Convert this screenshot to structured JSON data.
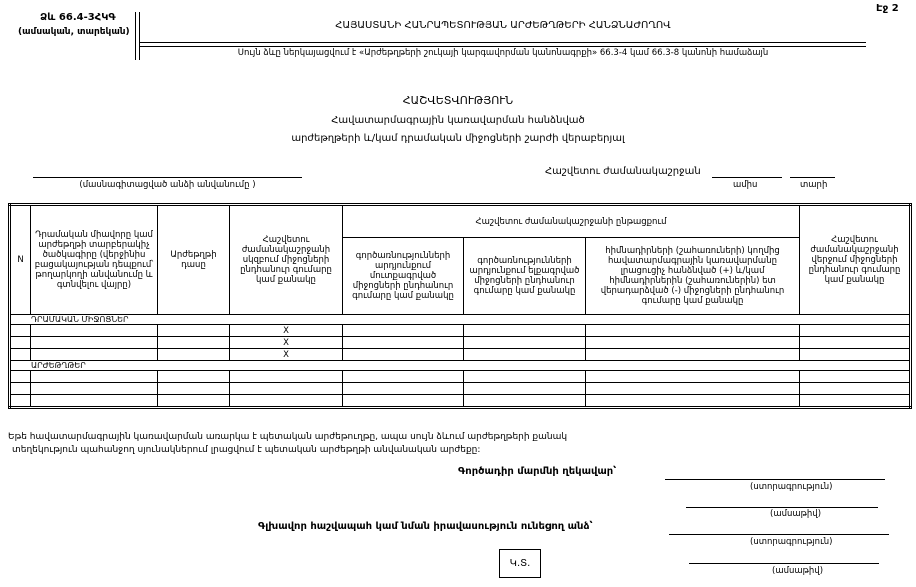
{
  "header": {
    "form_code": "Ձև 66.4-3ՀԿԳ",
    "form_period": "(ամսական, տարեկան)",
    "authority": "ՀԱՅԱՍՏԱՆԻ ՀԱՆՐԱՊԵՏՈՒԹՅԱՆ ԱՐԺԵԹՂԹԵՐԻ ՀԱՆՁՆԱԺՈՂՈՎ",
    "legal_basis": "Սույն ձևը ներկայացվում է «Արժեթղթերի շուկայի կարգավորման կանոնագրքի» 66.3-4 կամ 66.3-8 կանոնի համաձայն",
    "page_label": "Էջ 2"
  },
  "title": {
    "main": "ՀԱՇՎԵՏՎՈՒԹՅՈՒՆ",
    "line1": "Հավատարմագրային կառավարման հանձնված",
    "line2": "արժեթղթերի և/կամ դրամական միջոցների շարժի վերաբերյալ"
  },
  "entity": {
    "caption": "(մասնագիտացված անձի անվանումը )"
  },
  "period": {
    "label": "Հաշվետու ժամանակաշրջան",
    "month_caption": "ամիս",
    "year_caption": "տարի"
  },
  "table": {
    "headers": {
      "n": "N",
      "code": "Դրամական միավորը կամ արժեթղթի տարբերակիչ ծածկագիրը (վերջինիս բացակայության դեպքում՝ թողարկողի անվանումը և գտնվելու վայրը)",
      "class": "Արժեթղթի դասը",
      "start": "Հաշվետու ժամանակաշրջանի սկզբում միջոցների ընդհանուր գումարը կամ քանակը",
      "during": "Հաշվետու ժամանակաշրջանի ընթացքում",
      "in": "գործառնությունների արդյունքում մուտքագրված միջոցների ընդհանուր գումարը կամ քանակը",
      "out": "գործառնությունների արդյունքում ելքագրված միջոցների ընդհանուր գումարը կամ քանակը",
      "founders": "հիմնադիրների (շահառուների) կողմից հավատարմագրային կառավարմանը լրացուցիչ հանձնված (+) և/կամ հիմնադիրներին (շահառուներին) ետ վերադարձված (-) միջոցների ընդհանուր գումարը կամ քանակը",
      "end": "Հաշվետու ժամանակաշրջանի վերջում միջոցների ընդհանուր գումարը կամ քանակը"
    },
    "sections": [
      {
        "label": "ԴՐԱՄԱԿԱՆ ՄԻՋՈՑՆԵՐ",
        "rows": [
          [
            "",
            "",
            "",
            "X",
            "",
            "",
            "",
            ""
          ],
          [
            "",
            "",
            "",
            "X",
            "",
            "",
            "",
            ""
          ],
          [
            "",
            "",
            "",
            "X",
            "",
            "",
            "",
            ""
          ]
        ]
      },
      {
        "label": "ԱՐԺԵԹՂԹԵՐ",
        "rows": [
          [
            "",
            "",
            "",
            "",
            "",
            "",
            "",
            ""
          ],
          [
            "",
            "",
            "",
            "",
            "",
            "",
            "",
            ""
          ],
          [
            "",
            "",
            "",
            "",
            "",
            "",
            "",
            ""
          ]
        ]
      }
    ]
  },
  "footnote": {
    "line1": "Եթե հավատարմագրային կառավարման առարկա է պետական արժեթուղթը, ապա սույն ձևում արժեթղթերի քանակ",
    "line2": "տեղեկություն պահանջող սյունակներում լրացվում է պետական արժեթղթի անվանական արժեքը:"
  },
  "signatures": {
    "executive_label": "Գործադիր մարմնի ղեկավար՝",
    "accountant_label": "Գլխավոր հաշվապահ կամ նման իրավասություն ունեցող անձ՝",
    "signature_caption": "(ստորագրություն)",
    "date_caption": "(ամսաթիվ)",
    "stamp": "Կ.Տ."
  }
}
